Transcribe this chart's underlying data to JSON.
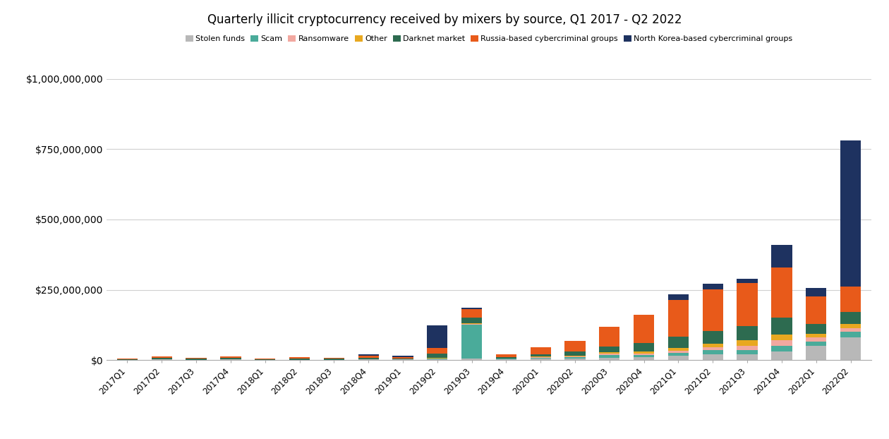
{
  "title": "Quarterly illicit cryptocurrency received by mixers by source, Q1 2017 - Q2 2022",
  "categories": [
    "2017Q1",
    "2017Q2",
    "2017Q3",
    "2017Q4",
    "2018Q1",
    "2018Q2",
    "2018Q3",
    "2018Q4",
    "2019Q1",
    "2019Q2",
    "2019Q3",
    "2019Q4",
    "2020Q1",
    "2020Q2",
    "2020Q3",
    "2020Q4",
    "2021Q1",
    "2021Q2",
    "2021Q3",
    "2021Q4",
    "2022Q1",
    "2022Q2"
  ],
  "series": {
    "Stolen funds": {
      "color": "#b8b8b8",
      "values": [
        1000000,
        2000000,
        1000000,
        2000000,
        1000000,
        1000000,
        1000000,
        2000000,
        2000000,
        3000000,
        5000000,
        2000000,
        5000000,
        5000000,
        8000000,
        10000000,
        15000000,
        20000000,
        20000000,
        30000000,
        50000000,
        80000000
      ]
    },
    "Scam": {
      "color": "#4aab9a",
      "values": [
        0,
        0,
        0,
        0,
        0,
        0,
        0,
        0,
        0,
        2000000,
        120000000,
        2000000,
        3000000,
        5000000,
        10000000,
        8000000,
        10000000,
        15000000,
        15000000,
        20000000,
        15000000,
        20000000
      ]
    },
    "Ransomware": {
      "color": "#f2a8a0",
      "values": [
        0,
        0,
        0,
        0,
        0,
        0,
        0,
        0,
        0,
        1000000,
        3000000,
        1000000,
        2000000,
        2000000,
        4000000,
        5000000,
        8000000,
        10000000,
        15000000,
        20000000,
        15000000,
        12000000
      ]
    },
    "Other": {
      "color": "#e8a820",
      "values": [
        0,
        0,
        0,
        0,
        0,
        0,
        0,
        0,
        0,
        1000000,
        3000000,
        1000000,
        2000000,
        2000000,
        5000000,
        7000000,
        10000000,
        12000000,
        20000000,
        20000000,
        12000000,
        15000000
      ]
    },
    "Darknet market": {
      "color": "#2d6b50",
      "values": [
        2000000,
        5000000,
        3000000,
        5000000,
        2000000,
        4000000,
        3000000,
        6000000,
        4000000,
        15000000,
        20000000,
        5000000,
        8000000,
        15000000,
        20000000,
        30000000,
        40000000,
        45000000,
        50000000,
        60000000,
        35000000,
        45000000
      ]
    },
    "Russia-based cybercriminal groups": {
      "color": "#e85a1a",
      "values": [
        2000000,
        5000000,
        3000000,
        5000000,
        2000000,
        4000000,
        3000000,
        8000000,
        5000000,
        20000000,
        30000000,
        10000000,
        25000000,
        40000000,
        70000000,
        100000000,
        130000000,
        150000000,
        155000000,
        180000000,
        100000000,
        90000000
      ]
    },
    "North Korea-based cybercriminal groups": {
      "color": "#1e3260",
      "values": [
        0,
        0,
        0,
        0,
        0,
        0,
        0,
        5000000,
        5000000,
        80000000,
        5000000,
        0,
        0,
        0,
        0,
        0,
        20000000,
        20000000,
        15000000,
        80000000,
        30000000,
        520000000
      ]
    }
  },
  "ylim": [
    0,
    1000000000
  ],
  "yticks": [
    0,
    250000000,
    500000000,
    750000000,
    1000000000
  ],
  "ytick_labels": [
    "$0",
    "$250,000,000",
    "$500,000,000",
    "$750,000,000",
    "$1,000,000,000"
  ],
  "background_color": "#ffffff",
  "grid_color": "#d0d0d0",
  "series_order": [
    "Stolen funds",
    "Scam",
    "Ransomware",
    "Other",
    "Darknet market",
    "Russia-based cybercriminal groups",
    "North Korea-based cybercriminal groups"
  ]
}
